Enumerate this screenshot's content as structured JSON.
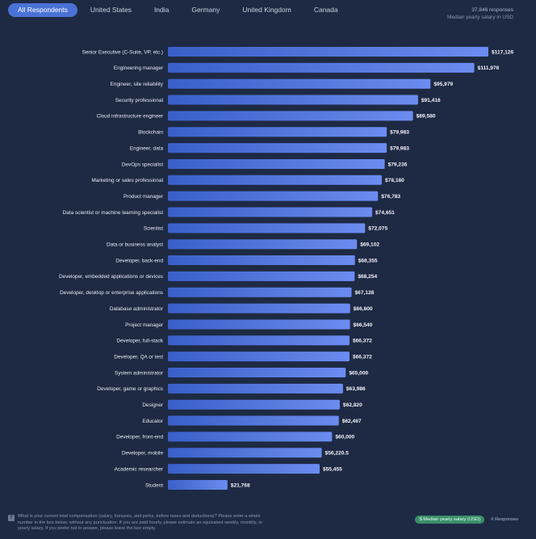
{
  "tabs": [
    {
      "label": "All Respondents",
      "active": true
    },
    {
      "label": "United States",
      "active": false
    },
    {
      "label": "India",
      "active": false
    },
    {
      "label": "Germany",
      "active": false
    },
    {
      "label": "United Kingdom",
      "active": false
    },
    {
      "label": "Canada",
      "active": false
    }
  ],
  "meta": {
    "responses": "37,846 responses",
    "subtitle": "Median yearly salary in USD"
  },
  "footer": {
    "question": "What is your current total compensation (salary, bonuses, and perks, before taxes and deductions)? Please enter a whole number in the box below, without any punctuation. If you are paid hourly, please estimate an equivalent weekly, monthly, or yearly salary. If you prefer not to answer, please leave the box empty.",
    "legend_active": "$ Median yearly salary (USD)",
    "legend_inactive": "# Responses"
  },
  "colors": {
    "background": "#1e2a44",
    "bar_start": "#3a5fc8",
    "bar_end": "#6b8cf0",
    "active_tab": "#4a72d6",
    "legend_active": "#3a8f6a"
  },
  "chart_data": {
    "type": "bar",
    "orientation": "horizontal",
    "categories": [
      "Senior Executive (C-Suite, VP, etc.)",
      "Engineering manager",
      "Engineer, site reliability",
      "Security professional",
      "Cloud infrastructure engineer",
      "Blockchain",
      "Engineer, data",
      "DevOps specialist",
      "Marketing or sales professional",
      "Product manager",
      "Data scientist or machine learning specialist",
      "Scientist",
      "Data or business analyst",
      "Developer, back-end",
      "Developer, embedded applications or devices",
      "Developer, desktop or enterprise applications",
      "Database administrator",
      "Project manager",
      "Developer, full-stack",
      "Developer, QA or test",
      "System administrator",
      "Developer, game or graphics",
      "Designer",
      "Educator",
      "Developer, front-end",
      "Developer, mobile",
      "Academic researcher",
      "Student"
    ],
    "values": [
      117126,
      111976,
      95979,
      91416,
      89580,
      79983,
      79983,
      79236,
      78180,
      76783,
      74651,
      72075,
      69102,
      68355,
      68254,
      67128,
      66600,
      66540,
      66372,
      66372,
      65000,
      63986,
      62820,
      62467,
      60000,
      56220.5,
      55455,
      21768
    ],
    "value_labels": [
      "$117,126",
      "$111,976",
      "$95,979",
      "$91,416",
      "$89,580",
      "$79,983",
      "$79,983",
      "$79,236",
      "$78,180",
      "$76,783",
      "$74,651",
      "$72,075",
      "$69,102",
      "$68,355",
      "$68,254",
      "$67,128",
      "$66,600",
      "$66,540",
      "$66,372",
      "$66,372",
      "$65,000",
      "$63,986",
      "$62,820",
      "$62,467",
      "$60,000",
      "$56,220.5",
      "$55,455",
      "$21,768"
    ],
    "title": "",
    "xlabel": "",
    "ylabel": "",
    "xlim": [
      0,
      117126
    ],
    "grid": false,
    "legend": "bottom-right"
  }
}
